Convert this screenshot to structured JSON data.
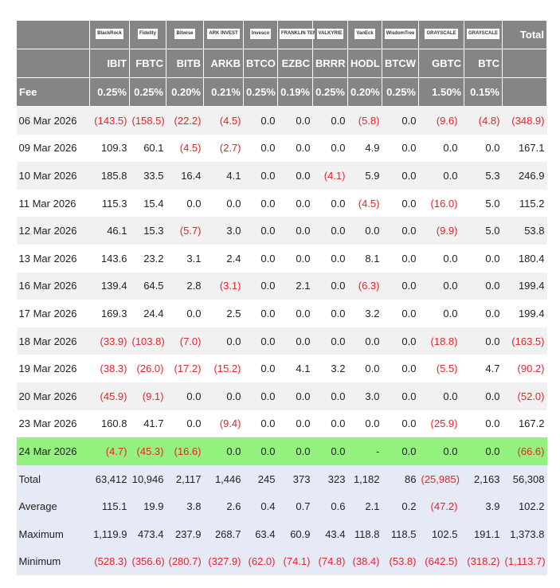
{
  "header": {
    "total": "Total",
    "fee_label": "Fee"
  },
  "columns": [
    {
      "logo": "BlackRock",
      "ticker": "IBIT",
      "fee": "0.25%"
    },
    {
      "logo": "Fidelity",
      "ticker": "FBTC",
      "fee": "0.25%"
    },
    {
      "logo": "Bitwise",
      "ticker": "BITB",
      "fee": "0.20%"
    },
    {
      "logo": "ARK INVEST",
      "ticker": "ARKB",
      "fee": "0.21%"
    },
    {
      "logo": "Invesco",
      "ticker": "BTCO",
      "fee": "0.25%"
    },
    {
      "logo": "FRANKLIN TEMPLETON",
      "ticker": "EZBC",
      "fee": "0.19%"
    },
    {
      "logo": "VALKYRIE",
      "ticker": "BRRR",
      "fee": "0.25%"
    },
    {
      "logo": "VanEck",
      "ticker": "HODL",
      "fee": "0.20%"
    },
    {
      "logo": "WisdomTree",
      "ticker": "BTCW",
      "fee": "0.25%"
    },
    {
      "logo": "GRAYSCALE",
      "ticker": "GBTC",
      "fee": "1.50%"
    },
    {
      "logo": "GRAYSCALE",
      "ticker": "BTC",
      "fee": "0.15%"
    }
  ],
  "rows": [
    [
      "06 Mar 2026",
      "(143.5)",
      "(158.5)",
      "(22.2)",
      "(4.5)",
      "0.0",
      "0.0",
      "0.0",
      "(5.8)",
      "0.0",
      "(9.6)",
      "(4.8)",
      "(348.9)"
    ],
    [
      "09 Mar 2026",
      "109.3",
      "60.1",
      "(4.5)",
      "(2.7)",
      "0.0",
      "0.0",
      "0.0",
      "4.9",
      "0.0",
      "0.0",
      "0.0",
      "167.1"
    ],
    [
      "10 Mar 2026",
      "185.8",
      "33.5",
      "16.4",
      "4.1",
      "0.0",
      "0.0",
      "(4.1)",
      "5.9",
      "0.0",
      "0.0",
      "5.3",
      "246.9"
    ],
    [
      "11 Mar 2026",
      "115.3",
      "15.4",
      "0.0",
      "0.0",
      "0.0",
      "0.0",
      "0.0",
      "(4.5)",
      "0.0",
      "(16.0)",
      "5.0",
      "115.2"
    ],
    [
      "12 Mar 2026",
      "46.1",
      "15.3",
      "(5.7)",
      "3.0",
      "0.0",
      "0.0",
      "0.0",
      "0.0",
      "0.0",
      "(9.9)",
      "5.0",
      "53.8"
    ],
    [
      "13 Mar 2026",
      "143.6",
      "23.2",
      "3.1",
      "2.4",
      "0.0",
      "0.0",
      "0.0",
      "8.1",
      "0.0",
      "0.0",
      "0.0",
      "180.4"
    ],
    [
      "16 Mar 2026",
      "139.4",
      "64.5",
      "2.8",
      "(3.1)",
      "0.0",
      "2.1",
      "0.0",
      "(6.3)",
      "0.0",
      "0.0",
      "0.0",
      "199.4"
    ],
    [
      "17 Mar 2026",
      "169.3",
      "24.4",
      "0.0",
      "2.5",
      "0.0",
      "0.0",
      "0.0",
      "3.2",
      "0.0",
      "0.0",
      "0.0",
      "199.4"
    ],
    [
      "18 Mar 2026",
      "(33.9)",
      "(103.8)",
      "(7.0)",
      "0.0",
      "0.0",
      "0.0",
      "0.0",
      "0.0",
      "0.0",
      "(18.8)",
      "0.0",
      "(163.5)"
    ],
    [
      "19 Mar 2026",
      "(38.3)",
      "(26.0)",
      "(17.2)",
      "(15.2)",
      "0.0",
      "4.1",
      "3.2",
      "0.0",
      "0.0",
      "(5.5)",
      "4.7",
      "(90.2)"
    ],
    [
      "20 Mar 2026",
      "(45.9)",
      "(9.1)",
      "0.0",
      "0.0",
      "0.0",
      "0.0",
      "0.0",
      "3.0",
      "0.0",
      "0.0",
      "0.0",
      "(52.0)"
    ],
    [
      "23 Mar 2026",
      "160.8",
      "41.7",
      "0.0",
      "(9.4)",
      "0.0",
      "0.0",
      "0.0",
      "0.0",
      "0.0",
      "(25.9)",
      "0.0",
      "167.2"
    ],
    [
      "24 Mar 2026",
      "(4.7)",
      "(45.3)",
      "(16.6)",
      "0.0",
      "0.0",
      "0.0",
      "0.0",
      "-",
      "0.0",
      "0.0",
      "0.0",
      "(66.6)"
    ]
  ],
  "summary": [
    [
      "Total",
      "63,412",
      "10,946",
      "2,117",
      "1,446",
      "245",
      "373",
      "323",
      "1,182",
      "86",
      "(25,985)",
      "2,163",
      "56,308"
    ],
    [
      "Average",
      "115.1",
      "19.9",
      "3.8",
      "2.6",
      "0.4",
      "0.7",
      "0.6",
      "2.1",
      "0.2",
      "(47.2)",
      "3.9",
      "102.2"
    ],
    [
      "Maximum",
      "1,119.9",
      "473.4",
      "237.9",
      "268.7",
      "63.4",
      "60.9",
      "43.4",
      "118.8",
      "118.5",
      "102.5",
      "191.1",
      "1,373.8"
    ],
    [
      "Minimum",
      "(528.3)",
      "(356.6)",
      "(280.7)",
      "(327.9)",
      "(62.0)",
      "(74.1)",
      "(74.8)",
      "(38.4)",
      "(53.8)",
      "(642.5)",
      "(318.2)",
      "(1,113.7)"
    ]
  ]
}
